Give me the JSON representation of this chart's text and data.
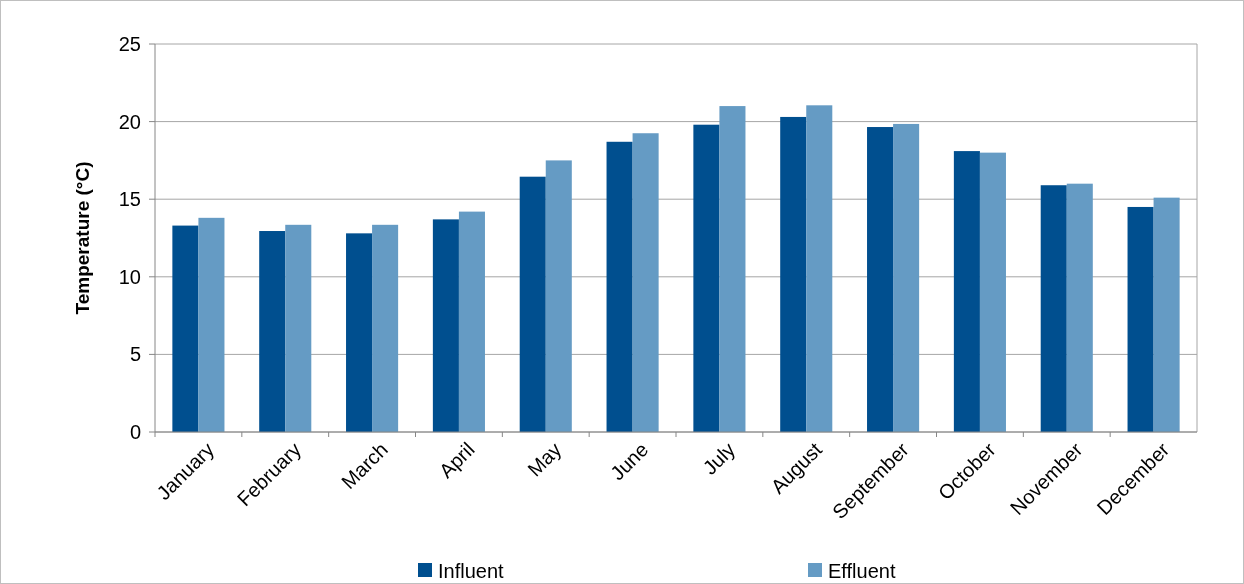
{
  "chart_data": {
    "type": "bar",
    "ylabel": "Temperature (°C)",
    "categories": [
      "January",
      "February",
      "March",
      "April",
      "May",
      "June",
      "July",
      "August",
      "September",
      "October",
      "November",
      "December"
    ],
    "series": [
      {
        "name": "Influent",
        "color": "#004f8f",
        "values": [
          13.3,
          12.95,
          12.8,
          13.7,
          16.45,
          18.7,
          19.8,
          20.3,
          19.65,
          18.1,
          15.9,
          14.5
        ]
      },
      {
        "name": "Effluent",
        "color": "#659bc4",
        "values": [
          13.8,
          13.35,
          13.35,
          14.2,
          17.5,
          19.25,
          21.0,
          21.05,
          19.85,
          18.0,
          16.0,
          15.1
        ]
      }
    ],
    "ylim": [
      0,
      25
    ],
    "yticks": [
      0,
      5,
      10,
      15,
      20,
      25
    ],
    "grid": "y",
    "legend": "bottom"
  }
}
